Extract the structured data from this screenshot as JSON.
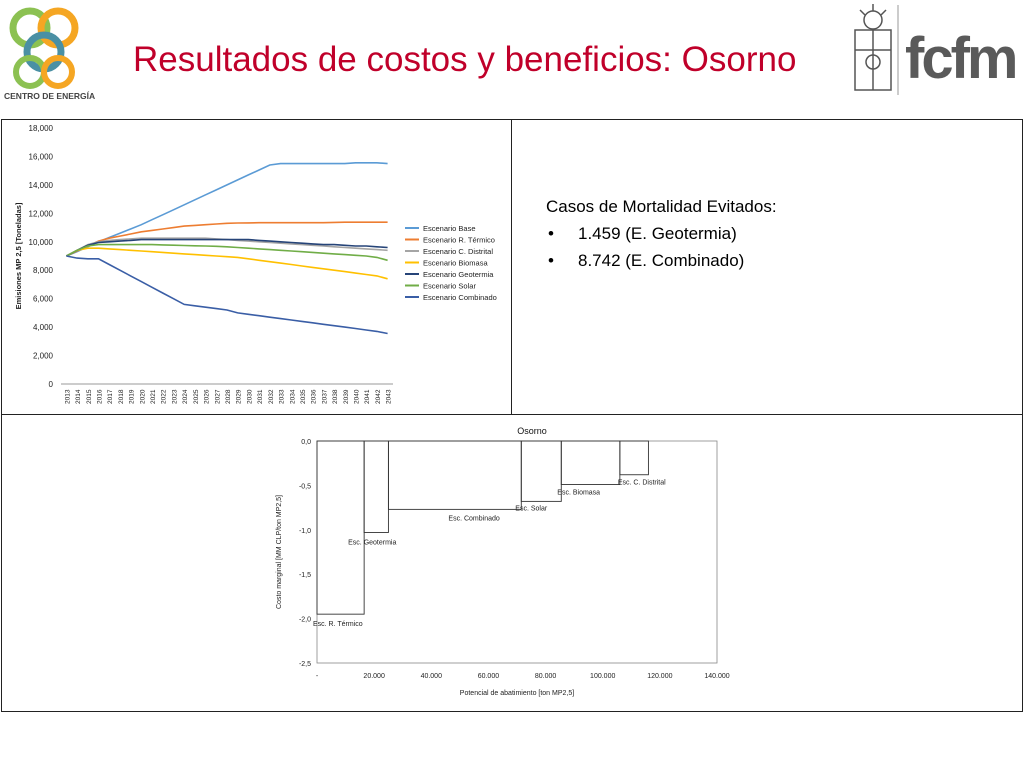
{
  "header": {
    "title": "Resultados de costos y beneficios: Osorno",
    "logo_left_text": "CENTRO DE ENERGÍA",
    "logo_right_text": "fcfm"
  },
  "mortality": {
    "heading": "Casos de Mortalidad Evitados:",
    "items": [
      "1.459 (E. Geotermia)",
      "8.742 (E. Combinado)"
    ]
  },
  "chart_data": [
    {
      "type": "line",
      "title": "",
      "xlabel": "",
      "ylabel": "Emisiones MP 2,5 [Toneladas]",
      "ylim": [
        0,
        18000
      ],
      "yticks": [
        "0",
        "2,000",
        "4,000",
        "6,000",
        "8,000",
        "10,000",
        "12,000",
        "14,000",
        "16,000",
        "18,000"
      ],
      "x": [
        "2013",
        "2014",
        "2015",
        "2016",
        "2017",
        "2018",
        "2019",
        "2020",
        "2021",
        "2022",
        "2023",
        "2024",
        "2025",
        "2026",
        "2027",
        "2028",
        "2029",
        "2030",
        "2031",
        "2032",
        "2033",
        "2034",
        "2035",
        "2036",
        "2037",
        "2038",
        "2039",
        "2040",
        "2041",
        "2042",
        "2043"
      ],
      "legend_position": "right",
      "series": [
        {
          "name": "Escenario Base",
          "color": "#5b9bd5",
          "values": [
            9000,
            9300,
            9650,
            10000,
            10300,
            10600,
            10900,
            11200,
            11550,
            11900,
            12250,
            12600,
            12950,
            13300,
            13650,
            14000,
            14350,
            14700,
            15050,
            15400,
            15500,
            15500,
            15500,
            15500,
            15500,
            15500,
            15500,
            15550,
            15550,
            15550,
            15500
          ]
        },
        {
          "name": "Escenario R. Térmico",
          "color": "#ed7d31",
          "values": [
            9000,
            9350,
            9700,
            10050,
            10250,
            10400,
            10550,
            10700,
            10800,
            10900,
            11000,
            11100,
            11150,
            11200,
            11250,
            11300,
            11320,
            11330,
            11340,
            11340,
            11340,
            11340,
            11340,
            11340,
            11340,
            11360,
            11380,
            11380,
            11380,
            11380,
            11380
          ]
        },
        {
          "name": "Escenario C. Distrital",
          "color": "#a5a5a5",
          "values": [
            9000,
            9400,
            9800,
            10000,
            10100,
            10150,
            10200,
            10250,
            10250,
            10250,
            10250,
            10250,
            10250,
            10250,
            10200,
            10150,
            10100,
            10050,
            10000,
            9950,
            9900,
            9850,
            9800,
            9750,
            9700,
            9650,
            9600,
            9550,
            9500,
            9450,
            9400
          ]
        },
        {
          "name": "Escenario Biomasa",
          "color": "#ffc000",
          "values": [
            9000,
            9400,
            9550,
            9550,
            9500,
            9450,
            9400,
            9350,
            9300,
            9250,
            9200,
            9150,
            9100,
            9050,
            9000,
            8950,
            8900,
            8800,
            8700,
            8600,
            8500,
            8400,
            8300,
            8200,
            8100,
            8000,
            7900,
            7800,
            7700,
            7600,
            7400
          ]
        },
        {
          "name": "Escenario Geotermia",
          "color": "#264478",
          "values": [
            9000,
            9400,
            9750,
            9950,
            10000,
            10050,
            10100,
            10150,
            10150,
            10150,
            10150,
            10150,
            10150,
            10150,
            10150,
            10150,
            10150,
            10150,
            10100,
            10050,
            10000,
            9950,
            9900,
            9850,
            9800,
            9800,
            9750,
            9700,
            9700,
            9650,
            9600
          ]
        },
        {
          "name": "Escenario Solar",
          "color": "#70ad47",
          "values": [
            9000,
            9400,
            9700,
            9800,
            9800,
            9800,
            9800,
            9800,
            9800,
            9780,
            9760,
            9740,
            9720,
            9700,
            9680,
            9650,
            9600,
            9550,
            9500,
            9450,
            9400,
            9350,
            9300,
            9250,
            9200,
            9150,
            9100,
            9050,
            9000,
            8900,
            8700
          ]
        },
        {
          "name": "Escenario Combinado",
          "color": "#3a5ea6",
          "values": [
            9000,
            8850,
            8800,
            8800,
            8400,
            8000,
            7600,
            7200,
            6800,
            6400,
            6000,
            5600,
            5500,
            5400,
            5300,
            5200,
            5000,
            4900,
            4800,
            4700,
            4600,
            4500,
            4400,
            4300,
            4200,
            4100,
            4000,
            3900,
            3800,
            3700,
            3550
          ]
        }
      ]
    },
    {
      "type": "step",
      "title": "Osorno",
      "xlabel": "Potencial de abatimiento [ton MP2,5]",
      "ylabel": "Costo marginal [MM CLP/ton MP2,5]",
      "xlim": [
        0,
        140000
      ],
      "ylim": [
        -2.5,
        0
      ],
      "xticks": [
        "-",
        "20.000",
        "40.000",
        "60.000",
        "80.000",
        "100.000",
        "120.000",
        "140.000"
      ],
      "yticks": [
        "0,0",
        "-0,5",
        "-1,0",
        "-1,5",
        "-2,0",
        "-2,5"
      ],
      "segments": [
        {
          "name": "Esc. R. Térmico",
          "x0": 0,
          "x1": 16500,
          "y": -1.95
        },
        {
          "name": "Esc. Geotermia",
          "x0": 16500,
          "x1": 25000,
          "y": -1.03
        },
        {
          "name": "Esc. Combinado",
          "x0": 25000,
          "x1": 71500,
          "y": -0.77
        },
        {
          "name": "Esc. Solar",
          "x0": 71500,
          "x1": 85500,
          "y": -0.68
        },
        {
          "name": "Esc. Biomasa",
          "x0": 85500,
          "x1": 106000,
          "y": -0.49
        },
        {
          "name": "Esc. C. Distrital",
          "x0": 106000,
          "x1": 116000,
          "y": -0.38
        }
      ]
    }
  ]
}
